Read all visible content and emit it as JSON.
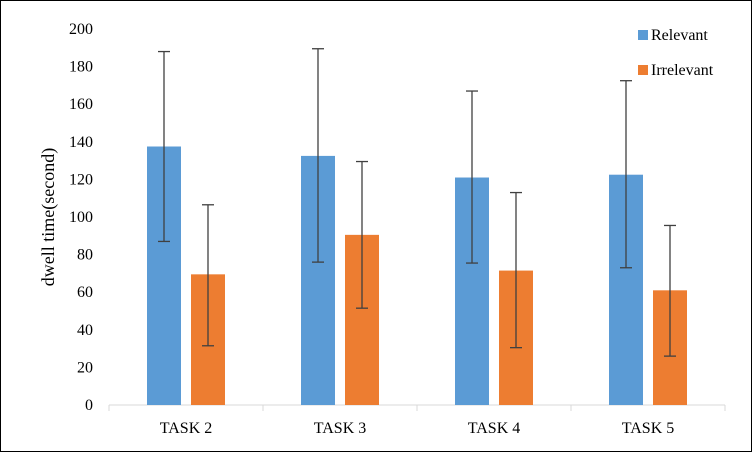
{
  "chart_data": {
    "type": "bar",
    "title": "",
    "xlabel": "",
    "ylabel": "dwell time(second)",
    "categories": [
      "TASK 2",
      "TASK 3",
      "TASK 4",
      "TASK 5"
    ],
    "series": [
      {
        "name": "Relevant",
        "color": "#5B9BD5",
        "values": [
          137.5,
          132.5,
          121,
          122.5
        ],
        "error_low": [
          87,
          76,
          75.5,
          73
        ],
        "error_high": [
          188,
          189.5,
          167,
          172.5
        ]
      },
      {
        "name": "Irrelevant",
        "color": "#ED7D31",
        "values": [
          69.5,
          90.5,
          71.5,
          61
        ],
        "error_low": [
          31.5,
          51.5,
          30.5,
          26
        ],
        "error_high": [
          106.5,
          129.5,
          113,
          95.5
        ]
      }
    ],
    "ylim": [
      0,
      200
    ],
    "yticks": [
      0,
      20,
      40,
      60,
      80,
      100,
      120,
      140,
      160,
      180,
      200
    ],
    "grid": false,
    "legend": "top-right"
  }
}
